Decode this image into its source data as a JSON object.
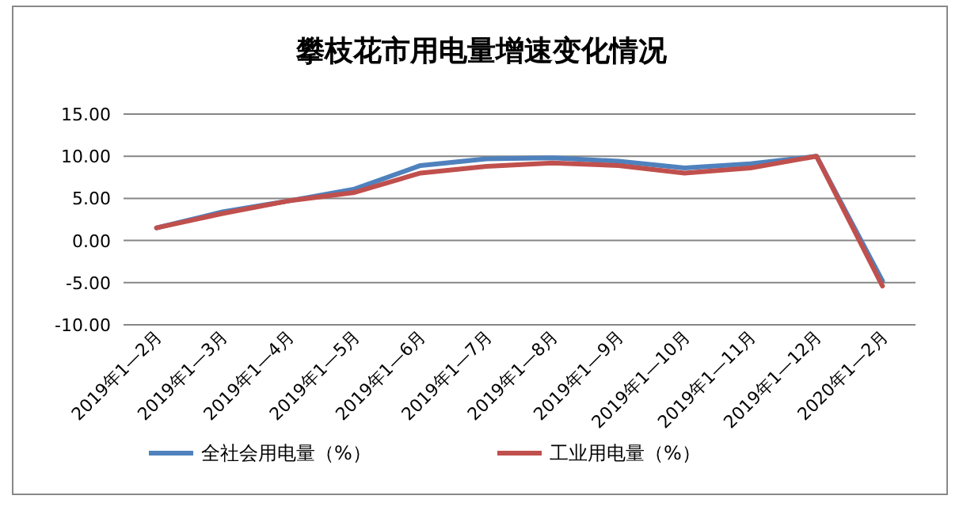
{
  "chart_data": {
    "type": "line",
    "title": "攀枝花市用电量增速变化情况",
    "categories": [
      "2019年1—2月",
      "2019年1—3月",
      "2019年1—4月",
      "2019年1—5月",
      "2019年1—6月",
      "2019年1—7月",
      "2019年1—8月",
      "2019年1—9月",
      "2019年1—10月",
      "2019年1—11月",
      "2019年1—12月",
      "2020年1—2月"
    ],
    "series": [
      {
        "name": "全社会用电量（%）",
        "color": "#4f81bd",
        "values": [
          1.5,
          3.4,
          4.7,
          6.1,
          8.9,
          9.7,
          9.8,
          9.4,
          8.6,
          9.1,
          10.0,
          -4.8
        ]
      },
      {
        "name": "工业用电量（%）",
        "color": "#c0504d",
        "values": [
          1.5,
          3.2,
          4.7,
          5.7,
          8.0,
          8.8,
          9.2,
          8.9,
          8.0,
          8.6,
          10.0,
          -5.4
        ]
      }
    ],
    "ylim": [
      -10,
      15
    ],
    "yticks": [
      {
        "value": -10,
        "label": "-10.00"
      },
      {
        "value": -5,
        "label": "-5.00"
      },
      {
        "value": 0,
        "label": "0.00"
      },
      {
        "value": 5,
        "label": "5.00"
      },
      {
        "value": 10,
        "label": "10.00"
      },
      {
        "value": 15,
        "label": "15.00"
      }
    ],
    "grid": "y",
    "legend": "bottom",
    "marker": "none",
    "line_style": "solid"
  }
}
